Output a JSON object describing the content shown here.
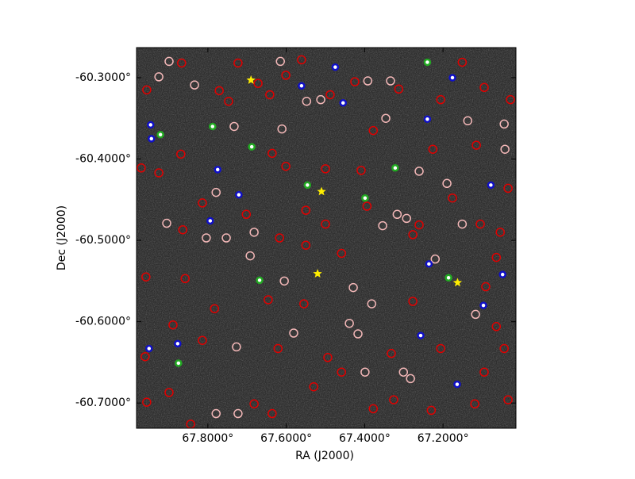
{
  "chart_data": {
    "type": "scatter",
    "xlabel": "RA (J2000)",
    "ylabel": "Dec (J2000)",
    "xlim": [
      67.982,
      67.014
    ],
    "ylim": [
      -60.731,
      -60.263
    ],
    "xticks": [
      {
        "value": 67.8,
        "label": "67.8000°"
      },
      {
        "value": 67.6,
        "label": "67.6000°"
      },
      {
        "value": 67.4,
        "label": "67.4000°"
      },
      {
        "value": 67.2,
        "label": "67.2000°"
      }
    ],
    "yticks": [
      {
        "value": -60.3,
        "label": "-60.3000°"
      },
      {
        "value": -60.4,
        "label": "-60.4000°"
      },
      {
        "value": -60.5,
        "label": "-60.5000°"
      },
      {
        "value": -60.6,
        "label": "-60.6000°"
      },
      {
        "value": -60.7,
        "label": "-60.7000°"
      }
    ],
    "background": "#2e2e2e",
    "series": [
      {
        "color": "#f4b8b8",
        "marker": "circle",
        "x": [
          67.899,
          67.925,
          67.834,
          67.733,
          67.611,
          67.548,
          67.512,
          67.392,
          67.334,
          67.346,
          67.779,
          67.905,
          67.753,
          67.682,
          67.692,
          67.605,
          67.581,
          67.429,
          67.382,
          67.317,
          67.293,
          67.354,
          67.261,
          67.19,
          67.151,
          67.22,
          67.117,
          67.042,
          67.044,
          67.137,
          67.417,
          67.399,
          67.301,
          67.283,
          67.727,
          67.779,
          67.723,
          67.439,
          67.804,
          67.615
        ],
        "values": [
          -60.28,
          -60.299,
          -60.309,
          -60.36,
          -60.363,
          -60.329,
          -60.327,
          -60.304,
          -60.304,
          -60.35,
          -60.441,
          -60.479,
          -60.497,
          -60.49,
          -60.519,
          -60.55,
          -60.614,
          -60.558,
          -60.578,
          -60.468,
          -60.473,
          -60.482,
          -60.415,
          -60.43,
          -60.48,
          -60.523,
          -60.591,
          -60.388,
          -60.357,
          -60.353,
          -60.615,
          -60.662,
          -60.662,
          -60.67,
          -60.631,
          -60.713,
          -60.713,
          -60.602,
          -60.497,
          -60.28
        ]
      },
      {
        "color": "#e00000",
        "marker": "circle",
        "x": [
          67.956,
          67.867,
          67.771,
          67.747,
          67.723,
          67.672,
          67.642,
          67.601,
          67.561,
          67.488,
          67.425,
          67.378,
          67.313,
          67.206,
          67.151,
          67.028,
          67.095,
          67.226,
          67.115,
          67.034,
          67.176,
          67.277,
          67.261,
          67.105,
          67.054,
          67.064,
          67.091,
          67.064,
          67.044,
          67.095,
          67.034,
          67.119,
          67.23,
          67.326,
          67.378,
          67.459,
          67.494,
          67.53,
          67.636,
          67.682,
          67.844,
          67.899,
          67.956,
          67.96,
          67.889,
          67.814,
          67.783,
          67.858,
          67.958,
          67.864,
          67.925,
          67.97,
          67.869,
          67.814,
          67.702,
          67.636,
          67.55,
          67.5,
          67.55,
          67.459,
          67.617,
          67.555,
          67.646,
          67.409,
          67.5,
          67.601,
          67.394,
          67.277,
          67.206,
          67.621,
          67.332
        ],
        "values": [
          -60.315,
          -60.282,
          -60.316,
          -60.329,
          -60.282,
          -60.307,
          -60.321,
          -60.297,
          -60.278,
          -60.321,
          -60.305,
          -60.365,
          -60.314,
          -60.327,
          -60.281,
          -60.327,
          -60.312,
          -60.388,
          -60.383,
          -60.436,
          -60.448,
          -60.493,
          -60.481,
          -60.48,
          -60.49,
          -60.521,
          -60.557,
          -60.606,
          -60.633,
          -60.662,
          -60.696,
          -60.701,
          -60.709,
          -60.696,
          -60.707,
          -60.662,
          -60.644,
          -60.68,
          -60.713,
          -60.701,
          -60.726,
          -60.687,
          -60.699,
          -60.643,
          -60.604,
          -60.623,
          -60.584,
          -60.547,
          -60.545,
          -60.487,
          -60.417,
          -60.411,
          -60.394,
          -60.454,
          -60.468,
          -60.393,
          -60.463,
          -60.48,
          -60.506,
          -60.516,
          -60.497,
          -60.578,
          -60.573,
          -60.414,
          -60.412,
          -60.409,
          -60.458,
          -60.575,
          -60.633,
          -60.633,
          -60.639
        ]
      },
      {
        "color": "#22aa22",
        "marker": "dot",
        "x": [
          67.788,
          67.921,
          67.688,
          67.546,
          67.322,
          67.399,
          67.186,
          67.875,
          67.24,
          67.668
        ],
        "values": [
          -60.36,
          -60.37,
          -60.385,
          -60.432,
          -60.411,
          -60.448,
          -60.546,
          -60.651,
          -60.281,
          -60.549
        ]
      },
      {
        "color": "#1010c8",
        "marker": "dot",
        "x": [
          67.946,
          67.944,
          67.775,
          67.721,
          67.794,
          67.561,
          67.455,
          67.475,
          67.176,
          67.24,
          67.078,
          67.048,
          67.95,
          67.877,
          67.257,
          67.164,
          67.236,
          67.097
        ],
        "values": [
          -60.358,
          -60.375,
          -60.413,
          -60.444,
          -60.476,
          -60.31,
          -60.331,
          -60.287,
          -60.3,
          -60.351,
          -60.432,
          -60.542,
          -60.633,
          -60.627,
          -60.617,
          -60.677,
          -60.529,
          -60.58
        ]
      },
      {
        "color": "#ffee00",
        "marker": "star",
        "x": [
          67.69,
          67.51,
          67.52,
          67.163
        ],
        "values": [
          -60.303,
          -60.44,
          -60.541,
          -60.552
        ]
      }
    ]
  }
}
